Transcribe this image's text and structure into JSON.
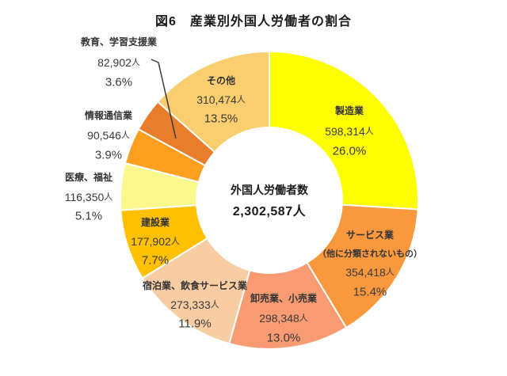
{
  "title": "図6　産業別外国人労働者の割合",
  "chart_data": {
    "type": "pie",
    "subtype": "donut",
    "title": "図6　産業別外国人労働者の割合",
    "center_label": "外国人労働者数",
    "center_value": "2,302,587人",
    "total": 2302587,
    "unit": "人",
    "start_angle_deg": 0,
    "direction": "clockwise",
    "legend": "none",
    "label_style": "each segment labeled with name, worker count and percent; three small segments labeled outside on the left, one with a leader line",
    "segments": [
      {
        "label": "製造業",
        "value": 598314,
        "value_label": "598,314人",
        "pct": 26.0,
        "pct_label": "26.0%",
        "color": "#FFFF00",
        "placement": "inside"
      },
      {
        "label": "サービス業（他に分類されないもの）",
        "label_lines": [
          "サービス業",
          "（他に分類されないもの）"
        ],
        "value": 354418,
        "value_label": "354,418人",
        "pct": 15.4,
        "pct_label": "15.4%",
        "color": "#F9983C",
        "placement": "inside"
      },
      {
        "label": "卸売業、小売業",
        "value": 298348,
        "value_label": "298,348人",
        "pct": 13.0,
        "pct_label": "13.0%",
        "color": "#F89B72",
        "placement": "inside"
      },
      {
        "label": "宿泊業、飲食サービス業",
        "value": 273333,
        "value_label": "273,333人",
        "pct": 11.9,
        "pct_label": "11.9%",
        "color": "#F9CDA4",
        "placement": "inside"
      },
      {
        "label": "建設業",
        "value": 177902,
        "value_label": "177,902人",
        "pct": 7.7,
        "pct_label": "7.7%",
        "color": "#FFC000",
        "placement": "inside"
      },
      {
        "label": "医療、福祉",
        "value": 116350,
        "value_label": "116,350人",
        "pct": 5.1,
        "pct_label": "5.1%",
        "color": "#FCF98C",
        "placement": "outside"
      },
      {
        "label": "情報通信業",
        "value": 90546,
        "value_label": "90,546人",
        "pct": 3.9,
        "pct_label": "3.9%",
        "color": "#FE9F20",
        "placement": "outside"
      },
      {
        "label": "教育、学習支援業",
        "value": 82902,
        "value_label": "82,902人",
        "pct": 3.6,
        "pct_label": "3.6%",
        "color": "#E87E2B",
        "placement": "outside-with-leader"
      },
      {
        "label": "その他",
        "value": 310474,
        "value_label": "310,474人",
        "pct": 13.5,
        "pct_label": "13.5%",
        "color": "#F9CE6F",
        "placement": "inside"
      }
    ]
  }
}
